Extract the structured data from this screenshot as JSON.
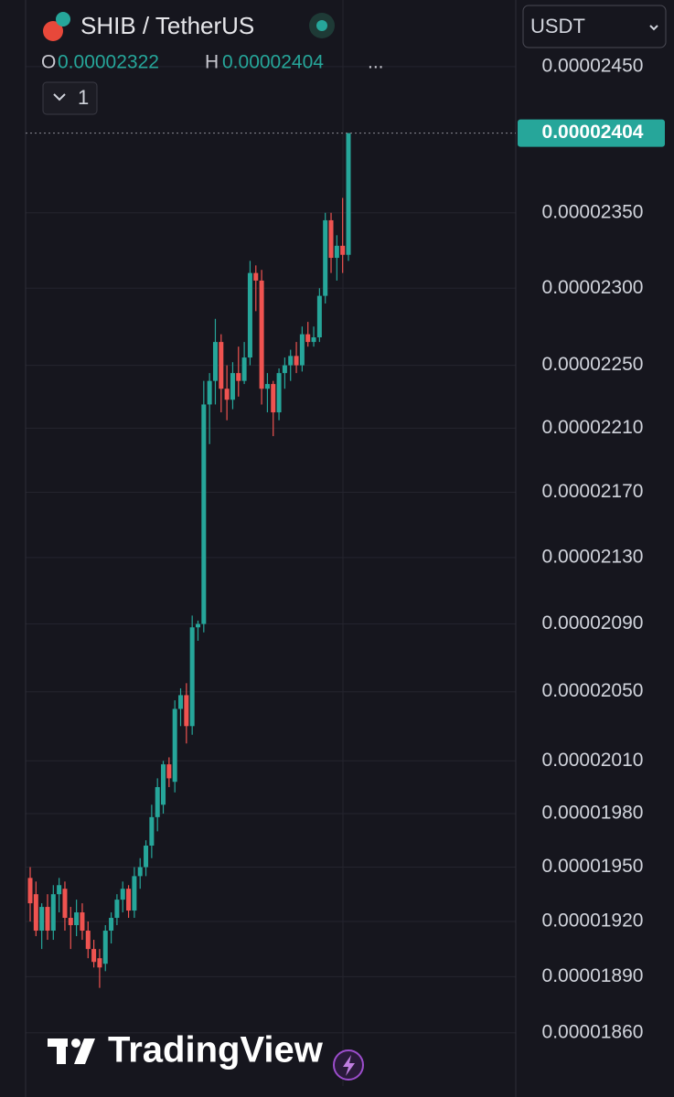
{
  "chart_data": {
    "type": "candlestick",
    "title": "SHIB / TetherUS",
    "interval": "1",
    "currency": "USDT",
    "watermark": "TradingView",
    "legend_open": "O",
    "legend_high": "H",
    "legend_more": "...",
    "log_scale": true,
    "grid": true,
    "up_color": "#26a69a",
    "down_color": "#ef5350",
    "ylim": [
      1.832e-05,
      2.497e-05
    ],
    "yticks": [
      {
        "value": 2.45e-05,
        "label": "0.00002450"
      },
      {
        "value": 2.35e-05,
        "label": "0.00002350"
      },
      {
        "value": 2.3e-05,
        "label": "0.00002300"
      },
      {
        "value": 2.25e-05,
        "label": "0.00002250"
      },
      {
        "value": 2.21e-05,
        "label": "0.00002210"
      },
      {
        "value": 2.17e-05,
        "label": "0.00002170"
      },
      {
        "value": 2.13e-05,
        "label": "0.00002130"
      },
      {
        "value": 2.09e-05,
        "label": "0.00002090"
      },
      {
        "value": 2.05e-05,
        "label": "0.00002050"
      },
      {
        "value": 2.01e-05,
        "label": "0.00002010"
      },
      {
        "value": 1.98e-05,
        "label": "0.00001980"
      },
      {
        "value": 1.95e-05,
        "label": "0.00001950"
      },
      {
        "value": 1.92e-05,
        "label": "0.00001920"
      },
      {
        "value": 1.89e-05,
        "label": "0.00001890"
      },
      {
        "value": 1.86e-05,
        "label": "0.00001860"
      }
    ],
    "open": [
      1.944e-05,
      1.935e-05,
      1.915e-05,
      1.928e-05,
      1.915e-05,
      1.935e-05,
      1.938e-05,
      1.922e-05,
      1.918e-05,
      1.925e-05,
      1.915e-05,
      1.905e-05,
      1.9e-05,
      1.897e-05,
      1.915e-05,
      1.922e-05,
      1.932e-05,
      1.938e-05,
      1.926e-05,
      1.945e-05,
      1.95e-05,
      1.962e-05,
      1.978e-05,
      1.985e-05,
      2.008e-05,
      1.998e-05,
      2.04e-05,
      2.048e-05,
      2.03e-05,
      2.088e-05,
      2.09e-05,
      2.225e-05,
      2.24e-05,
      2.265e-05,
      2.235e-05,
      2.228e-05,
      2.245e-05,
      2.24e-05,
      2.255e-05,
      2.31e-05,
      2.305e-05,
      2.235e-05,
      2.238e-05,
      2.22e-05,
      2.245e-05,
      2.25e-05,
      2.256e-05,
      2.25e-05,
      2.27e-05,
      2.265e-05,
      2.268e-05,
      2.295e-05,
      2.345e-05,
      2.32e-05,
      2.328e-05,
      2.322e-05
    ],
    "high": [
      1.95e-05,
      1.942e-05,
      1.93e-05,
      1.935e-05,
      1.94e-05,
      1.944e-05,
      1.942e-05,
      1.928e-05,
      1.932e-05,
      1.93e-05,
      1.92e-05,
      1.91e-05,
      1.905e-05,
      1.918e-05,
      1.925e-05,
      1.935e-05,
      1.942e-05,
      1.94e-05,
      1.95e-05,
      1.955e-05,
      1.965e-05,
      1.985e-05,
      2e-05,
      2.01e-05,
      2.012e-05,
      2.045e-05,
      2.052e-05,
      2.055e-05,
      2.095e-05,
      2.092e-05,
      2.24e-05,
      2.245e-05,
      2.28e-05,
      2.27e-05,
      2.25e-05,
      2.252e-05,
      2.262e-05,
      2.265e-05,
      2.318e-05,
      2.315e-05,
      2.312e-05,
      2.245e-05,
      2.24e-05,
      2.248e-05,
      2.255e-05,
      2.26e-05,
      2.265e-05,
      2.275e-05,
      2.278e-05,
      2.275e-05,
      2.3e-05,
      2.35e-05,
      2.35e-05,
      2.335e-05,
      2.36e-05,
      2.404e-05
    ],
    "low": [
      1.92e-05,
      1.912e-05,
      1.905e-05,
      1.91e-05,
      1.91e-05,
      1.925e-05,
      1.915e-05,
      1.905e-05,
      1.912e-05,
      1.91e-05,
      1.9e-05,
      1.895e-05,
      1.884e-05,
      1.893e-05,
      1.908e-05,
      1.918e-05,
      1.925e-05,
      1.922e-05,
      1.922e-05,
      1.938e-05,
      1.945e-05,
      1.955e-05,
      1.97e-05,
      1.98e-05,
      1.995e-05,
      1.992e-05,
      2.03e-05,
      2.02e-05,
      2.025e-05,
      2.08e-05,
      2.085e-05,
      2.2e-05,
      2.225e-05,
      2.22e-05,
      2.215e-05,
      2.222e-05,
      2.23e-05,
      2.238e-05,
      2.25e-05,
      2.285e-05,
      2.225e-05,
      2.22e-05,
      2.205e-05,
      2.215e-05,
      2.235e-05,
      2.24e-05,
      2.245e-05,
      2.246e-05,
      2.262e-05,
      2.262e-05,
      2.265e-05,
      2.29e-05,
      2.31e-05,
      2.305e-05,
      2.31e-05,
      2.318e-05
    ],
    "close": [
      1.93e-05,
      1.915e-05,
      1.928e-05,
      1.915e-05,
      1.935e-05,
      1.94e-05,
      1.922e-05,
      1.918e-05,
      1.925e-05,
      1.915e-05,
      1.905e-05,
      1.898e-05,
      1.895e-05,
      1.915e-05,
      1.922e-05,
      1.932e-05,
      1.938e-05,
      1.926e-05,
      1.945e-05,
      1.95e-05,
      1.962e-05,
      1.978e-05,
      1.995e-05,
      2.008e-05,
      2e-05,
      2.04e-05,
      2.048e-05,
      2.03e-05,
      2.088e-05,
      2.09e-05,
      2.225e-05,
      2.24e-05,
      2.265e-05,
      2.235e-05,
      2.228e-05,
      2.245e-05,
      2.24e-05,
      2.255e-05,
      2.31e-05,
      2.305e-05,
      2.235e-05,
      2.238e-05,
      2.22e-05,
      2.245e-05,
      2.25e-05,
      2.256e-05,
      2.25e-05,
      2.27e-05,
      2.265e-05,
      2.268e-05,
      2.295e-05,
      2.345e-05,
      2.32e-05,
      2.328e-05,
      2.322e-05,
      2.404e-05
    ]
  }
}
